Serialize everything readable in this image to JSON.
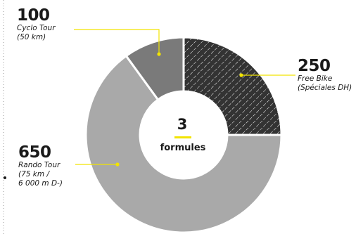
{
  "chart_data": {
    "type": "pie",
    "style": "donut",
    "center_value": "3",
    "center_label": "formules",
    "slices": [
      {
        "value": 250,
        "value_label": "250",
        "lines": [
          "Free Bike",
          "(Spéciales DH)"
        ],
        "fill": "hatched",
        "color": "#333333"
      },
      {
        "value": 650,
        "value_label": "650",
        "lines": [
          "Rando Tour",
          "(75 km /",
          "6 000 m D-)"
        ],
        "color": "#a9a9a9"
      },
      {
        "value": 100,
        "value_label": "100",
        "lines": [
          "Cyclo Tour",
          "(50 km)"
        ],
        "color": "#7a7a7a"
      }
    ],
    "leader_color": "#f2e400"
  }
}
